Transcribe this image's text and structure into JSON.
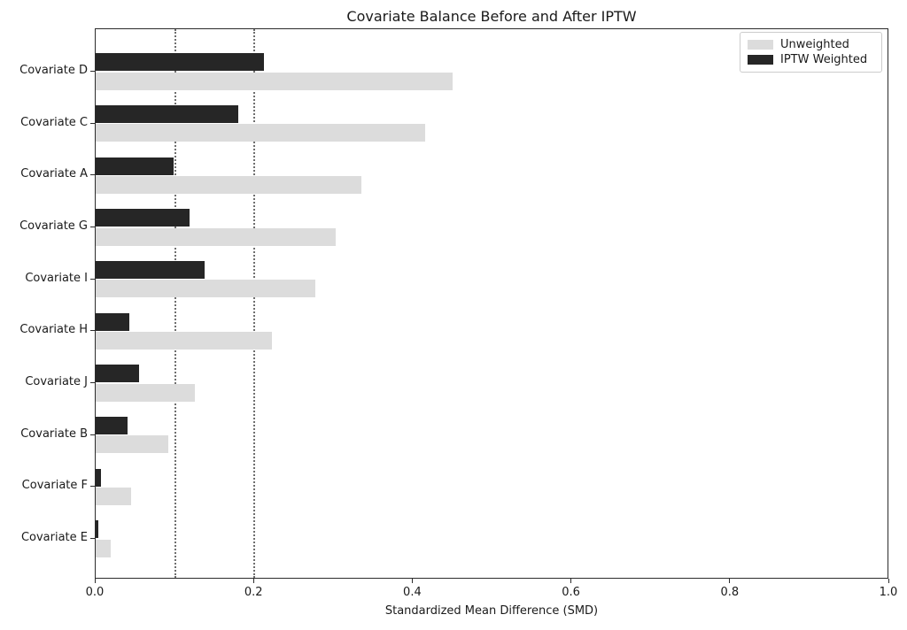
{
  "title": "Covariate Balance Before and After IPTW",
  "xlabel": "Standardized Mean Difference (SMD)",
  "chart_data": {
    "type": "bar",
    "orientation": "horizontal",
    "title": "Covariate Balance Before and After IPTW",
    "xlabel": "Standardized Mean Difference (SMD)",
    "ylabel": "",
    "categories": [
      "Covariate D",
      "Covariate C",
      "Covariate A",
      "Covariate G",
      "Covariate I",
      "Covariate H",
      "Covariate J",
      "Covariate B",
      "Covariate F",
      "Covariate E"
    ],
    "series": [
      {
        "name": "Unweighted",
        "color": "#dcdcdc",
        "values": [
          0.45,
          0.415,
          0.335,
          0.303,
          0.277,
          0.222,
          0.125,
          0.092,
          0.045,
          0.019
        ]
      },
      {
        "name": "IPTW Weighted",
        "color": "#262626",
        "values": [
          0.212,
          0.18,
          0.098,
          0.118,
          0.137,
          0.042,
          0.055,
          0.04,
          0.007,
          0.003
        ]
      }
    ],
    "xlim": [
      0.0,
      1.0
    ],
    "x_ticks": [
      0.0,
      0.2,
      0.4,
      0.6,
      0.8,
      1.0
    ],
    "reference_lines": [
      0.1,
      0.2
    ],
    "reference_line_style": "dotted",
    "grid": false,
    "legend_position": "upper right",
    "legend_labels": [
      "Unweighted",
      "IPTW Weighted"
    ]
  }
}
